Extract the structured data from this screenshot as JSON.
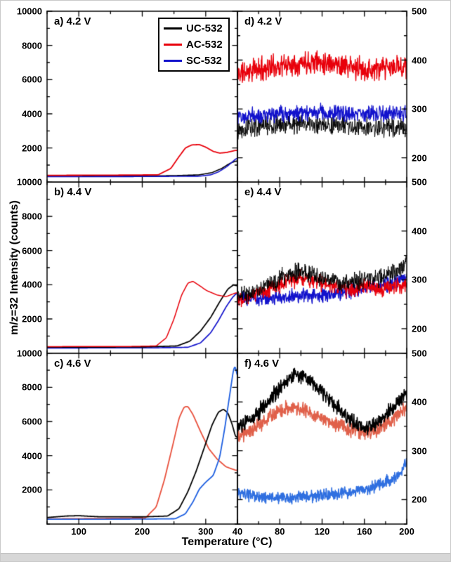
{
  "figure": {
    "ylabel": "m/z=32  Intensity (counts)",
    "xlabel": "Temperature (°C)",
    "legend": [
      {
        "label": "UC-532",
        "color": "#000000"
      },
      {
        "label": "AC-532",
        "color": "#e8000b"
      },
      {
        "label": "SC-532",
        "color": "#1212cc"
      }
    ]
  },
  "chart_data": [
    {
      "id": "a",
      "label": "a) 4.2 V",
      "type": "line",
      "col": 0,
      "row": 0,
      "xlim": [
        50,
        350
      ],
      "ylim": [
        0,
        10000
      ],
      "xticks": [
        100,
        200,
        300
      ],
      "yticks": [
        2000,
        4000,
        6000,
        8000,
        10000
      ],
      "xminor": 50,
      "yminor": 1000,
      "ytick_side": "left",
      "show_xtick_labels": false,
      "series": [
        {
          "name": "UC-532",
          "color": "#000000",
          "width": 1.6,
          "noise": 0,
          "seed": 1,
          "points": [
            [
              50,
              340
            ],
            [
              150,
              350
            ],
            [
              250,
              380
            ],
            [
              290,
              430
            ],
            [
              310,
              560
            ],
            [
              325,
              800
            ],
            [
              338,
              1100
            ],
            [
              347,
              1230
            ]
          ]
        },
        {
          "name": "SC-532",
          "color": "#1212cc",
          "width": 1.6,
          "noise": 0,
          "seed": 2,
          "points": [
            [
              50,
              320
            ],
            [
              200,
              330
            ],
            [
              290,
              350
            ],
            [
              308,
              430
            ],
            [
              320,
              600
            ],
            [
              333,
              900
            ],
            [
              344,
              1250
            ],
            [
              348,
              1380
            ]
          ]
        },
        {
          "name": "AC-532",
          "color": "#e8000b",
          "width": 1.8,
          "noise": 0,
          "seed": 3,
          "points": [
            [
              50,
              400
            ],
            [
              150,
              410
            ],
            [
              225,
              430
            ],
            [
              245,
              800
            ],
            [
              258,
              1500
            ],
            [
              268,
              2000
            ],
            [
              278,
              2180
            ],
            [
              290,
              2200
            ],
            [
              300,
              2050
            ],
            [
              312,
              1800
            ],
            [
              322,
              1700
            ],
            [
              333,
              1740
            ],
            [
              347,
              1860
            ]
          ]
        }
      ]
    },
    {
      "id": "d",
      "label": "d) 4.2 V",
      "type": "line",
      "col": 1,
      "row": 0,
      "xlim": [
        40,
        200
      ],
      "ylim": [
        150,
        500
      ],
      "xticks": [
        40,
        80,
        120,
        160,
        200
      ],
      "yticks": [
        200,
        300,
        400,
        500
      ],
      "xminor": 20,
      "yminor": 50,
      "ytick_side": "right",
      "show_xtick_labels": false,
      "series": [
        {
          "name": "UC-532",
          "color": "#000000",
          "width": 1.0,
          "noise": 13,
          "seed": 13,
          "points": [
            [
              40,
              260
            ],
            [
              70,
              266
            ],
            [
              100,
              270
            ],
            [
              130,
              266
            ],
            [
              160,
              262
            ],
            [
              200,
              263
            ]
          ]
        },
        {
          "name": "SC-532",
          "color": "#1212cc",
          "width": 1.3,
          "noise": 11,
          "seed": 12,
          "points": [
            [
              40,
              286
            ],
            [
              80,
              290
            ],
            [
              120,
              293
            ],
            [
              160,
              290
            ],
            [
              200,
              292
            ]
          ]
        },
        {
          "name": "AC-532",
          "color": "#e8000b",
          "width": 1.4,
          "noise": 16,
          "seed": 11,
          "points": [
            [
              40,
              372
            ],
            [
              60,
              382
            ],
            [
              85,
              390
            ],
            [
              110,
              398
            ],
            [
              130,
              395
            ],
            [
              150,
              383
            ],
            [
              170,
              380
            ],
            [
              185,
              384
            ],
            [
              200,
              390
            ]
          ]
        }
      ]
    },
    {
      "id": "b",
      "label": "b) 4.4 V",
      "type": "line",
      "col": 0,
      "row": 1,
      "xlim": [
        50,
        350
      ],
      "ylim": [
        0,
        10000
      ],
      "xticks": [
        100,
        200,
        300
      ],
      "yticks": [
        2000,
        4000,
        6000,
        8000,
        10000
      ],
      "xminor": 50,
      "yminor": 1000,
      "ytick_side": "left",
      "show_xtick_labels": false,
      "series": [
        {
          "name": "SC-532",
          "color": "#1212cc",
          "width": 1.7,
          "noise": 0,
          "seed": 4,
          "points": [
            [
              50,
              300
            ],
            [
              220,
              310
            ],
            [
              272,
              340
            ],
            [
              292,
              600
            ],
            [
              308,
              1200
            ],
            [
              320,
              1900
            ],
            [
              332,
              2700
            ],
            [
              342,
              3250
            ],
            [
              348,
              3480
            ]
          ]
        },
        {
          "name": "UC-532",
          "color": "#000000",
          "width": 1.8,
          "noise": 0,
          "seed": 5,
          "points": [
            [
              50,
              350
            ],
            [
              200,
              360
            ],
            [
              255,
              420
            ],
            [
              275,
              700
            ],
            [
              292,
              1300
            ],
            [
              308,
              2100
            ],
            [
              322,
              3000
            ],
            [
              335,
              3750
            ],
            [
              344,
              4000
            ],
            [
              347,
              3950
            ]
          ]
        },
        {
          "name": "AC-532",
          "color": "#e8000b",
          "width": 1.5,
          "noise": 0,
          "seed": 6,
          "points": [
            [
              50,
              380
            ],
            [
              180,
              390
            ],
            [
              222,
              420
            ],
            [
              238,
              900
            ],
            [
              250,
              2000
            ],
            [
              262,
              3400
            ],
            [
              272,
              4100
            ],
            [
              280,
              4200
            ],
            [
              290,
              3950
            ],
            [
              302,
              3650
            ],
            [
              318,
              3400
            ],
            [
              332,
              3300
            ],
            [
              347,
              3520
            ]
          ]
        }
      ]
    },
    {
      "id": "e",
      "label": "e) 4.4 V",
      "type": "line",
      "col": 1,
      "row": 1,
      "xlim": [
        40,
        200
      ],
      "ylim": [
        150,
        500
      ],
      "xticks": [
        40,
        80,
        120,
        160,
        200
      ],
      "yticks": [
        200,
        300,
        400,
        500
      ],
      "xminor": 20,
      "yminor": 50,
      "ytick_side": "right",
      "show_xtick_labels": false,
      "series": [
        {
          "name": "SC-532",
          "color": "#1212cc",
          "width": 1.4,
          "noise": 10,
          "seed": 23,
          "points": [
            [
              40,
              261
            ],
            [
              70,
              263
            ],
            [
              100,
              267
            ],
            [
              130,
              271
            ],
            [
              155,
              280
            ],
            [
              175,
              288
            ],
            [
              200,
              300
            ]
          ]
        },
        {
          "name": "AC-532",
          "color": "#e8000b",
          "width": 1.4,
          "noise": 11,
          "seed": 22,
          "points": [
            [
              40,
              262
            ],
            [
              55,
              270
            ],
            [
              72,
              283
            ],
            [
              88,
              297
            ],
            [
              100,
              304
            ],
            [
              112,
              299
            ],
            [
              128,
              288
            ],
            [
              142,
              281
            ],
            [
              158,
              284
            ],
            [
              172,
              281
            ],
            [
              186,
              283
            ],
            [
              200,
              296
            ]
          ]
        },
        {
          "name": "UC-532",
          "color": "#000000",
          "width": 1.0,
          "noise": 13,
          "seed": 21,
          "points": [
            [
              40,
              268
            ],
            [
              55,
              275
            ],
            [
              70,
              290
            ],
            [
              85,
              310
            ],
            [
              95,
              318
            ],
            [
              110,
              312
            ],
            [
              125,
              300
            ],
            [
              140,
              294
            ],
            [
              155,
              298
            ],
            [
              170,
              303
            ],
            [
              182,
              308
            ],
            [
              192,
              318
            ],
            [
              200,
              338
            ]
          ]
        }
      ]
    },
    {
      "id": "c",
      "label": "c) 4.6 V",
      "type": "line",
      "col": 0,
      "row": 2,
      "xlim": [
        50,
        350
      ],
      "ylim": [
        0,
        10000
      ],
      "xticks": [
        100,
        200,
        300
      ],
      "yticks": [
        2000,
        4000,
        6000,
        8000,
        10000
      ],
      "xminor": 50,
      "yminor": 1000,
      "ytick_side": "left",
      "show_xtick_labels": true,
      "series": [
        {
          "name": "AC-532",
          "color": "#e8503c",
          "width": 1.8,
          "noise": 0,
          "seed": 7,
          "points": [
            [
              50,
              300
            ],
            [
              150,
              330
            ],
            [
              205,
              360
            ],
            [
              222,
              1000
            ],
            [
              235,
              2600
            ],
            [
              248,
              4600
            ],
            [
              258,
              6200
            ],
            [
              266,
              6850
            ],
            [
              272,
              6880
            ],
            [
              280,
              6400
            ],
            [
              292,
              5400
            ],
            [
              305,
              4400
            ],
            [
              318,
              3800
            ],
            [
              332,
              3350
            ],
            [
              347,
              3150
            ]
          ]
        },
        {
          "name": "UC-532",
          "color": "#000000",
          "width": 1.8,
          "noise": 0,
          "seed": 8,
          "points": [
            [
              50,
              380
            ],
            [
              80,
              470
            ],
            [
              100,
              490
            ],
            [
              130,
              430
            ],
            [
              200,
              420
            ],
            [
              240,
              470
            ],
            [
              258,
              900
            ],
            [
              272,
              1900
            ],
            [
              285,
              3100
            ],
            [
              298,
              4500
            ],
            [
              310,
              5800
            ],
            [
              320,
              6550
            ],
            [
              328,
              6720
            ],
            [
              335,
              6500
            ],
            [
              342,
              5800
            ],
            [
              347,
              5100
            ]
          ]
        },
        {
          "name": "SC-532",
          "color": "#1e5fe0",
          "width": 1.8,
          "noise": 0,
          "seed": 9,
          "points": [
            [
              50,
              280
            ],
            [
              200,
              290
            ],
            [
              252,
              310
            ],
            [
              268,
              600
            ],
            [
              280,
              1300
            ],
            [
              290,
              2050
            ],
            [
              300,
              2450
            ],
            [
              312,
              2850
            ],
            [
              322,
              3900
            ],
            [
              330,
              5600
            ],
            [
              338,
              7600
            ],
            [
              344,
              9100
            ],
            [
              347,
              9250
            ],
            [
              349,
              8700
            ]
          ]
        }
      ]
    },
    {
      "id": "f",
      "label": "f) 4.6 V",
      "type": "line",
      "col": 1,
      "row": 2,
      "xlim": [
        40,
        200
      ],
      "ylim": [
        150,
        500
      ],
      "xticks": [
        40,
        80,
        120,
        160,
        200
      ],
      "yticks": [
        200,
        300,
        400,
        500
      ],
      "xminor": 20,
      "yminor": 50,
      "ytick_side": "right",
      "show_xtick_labels": true,
      "series": [
        {
          "name": "SC-532",
          "color": "#2f6fe0",
          "width": 1.6,
          "noise": 8,
          "seed": 33,
          "points": [
            [
              40,
              212
            ],
            [
              60,
              206
            ],
            [
              85,
              203
            ],
            [
              110,
              206
            ],
            [
              130,
              211
            ],
            [
              148,
              215
            ],
            [
              162,
              222
            ],
            [
              175,
              232
            ],
            [
              185,
              240
            ],
            [
              193,
              250
            ],
            [
              200,
              278
            ]
          ]
        },
        {
          "name": "AC-532",
          "color": "#e0604a",
          "width": 1.6,
          "noise": 10,
          "seed": 32,
          "points": [
            [
              40,
              328
            ],
            [
              52,
              342
            ],
            [
              66,
              362
            ],
            [
              80,
              382
            ],
            [
              92,
              390
            ],
            [
              104,
              383
            ],
            [
              118,
              370
            ],
            [
              132,
              356
            ],
            [
              146,
              344
            ],
            [
              158,
              338
            ],
            [
              170,
              342
            ],
            [
              182,
              356
            ],
            [
              192,
              372
            ],
            [
              200,
              392
            ]
          ]
        },
        {
          "name": "UC-532",
          "color": "#000000",
          "width": 1.6,
          "noise": 11,
          "seed": 31,
          "points": [
            [
              40,
              345
            ],
            [
              52,
              362
            ],
            [
              64,
              390
            ],
            [
              76,
              420
            ],
            [
              88,
              448
            ],
            [
              96,
              458
            ],
            [
              106,
              450
            ],
            [
              118,
              425
            ],
            [
              130,
              398
            ],
            [
              142,
              370
            ],
            [
              152,
              352
            ],
            [
              162,
              345
            ],
            [
              172,
              355
            ],
            [
              182,
              378
            ],
            [
              192,
              400
            ],
            [
              200,
              418
            ]
          ]
        }
      ]
    }
  ]
}
